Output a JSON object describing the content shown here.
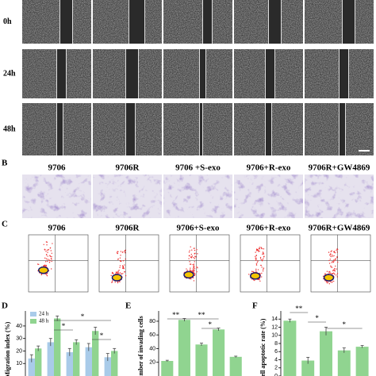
{
  "panel_labels": [
    "B",
    "C",
    "D",
    "E",
    "F"
  ],
  "scratch": {
    "time_labels": [
      "0h",
      "24h",
      "48h"
    ]
  },
  "transwell": {
    "headers": [
      "9706",
      "9706R",
      "9706 +S-exo",
      "9706+R-exo",
      "9706R+GW4869"
    ]
  },
  "flow": {
    "headers": [
      "9706",
      "9706R",
      "9706+S-exo",
      "9706+R-exo",
      "9706R+GW4869"
    ]
  },
  "chart_data": [
    {
      "type": "bar",
      "ylabel": "Migration index (%)",
      "categories": [
        null,
        null,
        null,
        null,
        null
      ],
      "series": [
        {
          "name": "24 h",
          "color": "#a9cbe9",
          "values": [
            14,
            27,
            19,
            23,
            15
          ],
          "errors": [
            3,
            3,
            3,
            3,
            3
          ]
        },
        {
          "name": "48 h",
          "color": "#90d490",
          "values": [
            22,
            46,
            27,
            36,
            20
          ],
          "errors": [
            2,
            2,
            2,
            3,
            2
          ]
        }
      ],
      "ylim": [
        0,
        52
      ],
      "yticks": [
        10,
        20,
        30,
        40
      ],
      "annotations": [
        "*",
        "*",
        "*"
      ]
    },
    {
      "type": "bar",
      "ylabel": "Number of invading cells",
      "categories": [
        null,
        null,
        null,
        null,
        null
      ],
      "series": [
        {
          "color": "#90d490",
          "values": [
            22,
            82,
            46,
            68,
            28
          ],
          "errors": [
            1,
            2,
            2,
            2,
            1
          ]
        }
      ],
      "ylim": [
        0,
        95
      ],
      "yticks": [
        20,
        40,
        60,
        80
      ],
      "annotations": [
        "**",
        "**",
        "*"
      ]
    },
    {
      "type": "bar",
      "ylabel": "Cell apoptotic rate (%)",
      "categories": [
        null,
        null,
        null,
        null,
        null
      ],
      "series": [
        {
          "color": "#90d490",
          "values": [
            13.6,
            3.8,
            11,
            6.3,
            7.2
          ],
          "errors": [
            0.4,
            0.8,
            1,
            0.6,
            0.3
          ]
        }
      ],
      "ylim": [
        0,
        16
      ],
      "yticks": [
        0,
        2,
        4,
        6,
        8,
        10,
        12,
        14
      ],
      "annotations": [
        "**",
        "*",
        "*"
      ]
    }
  ]
}
